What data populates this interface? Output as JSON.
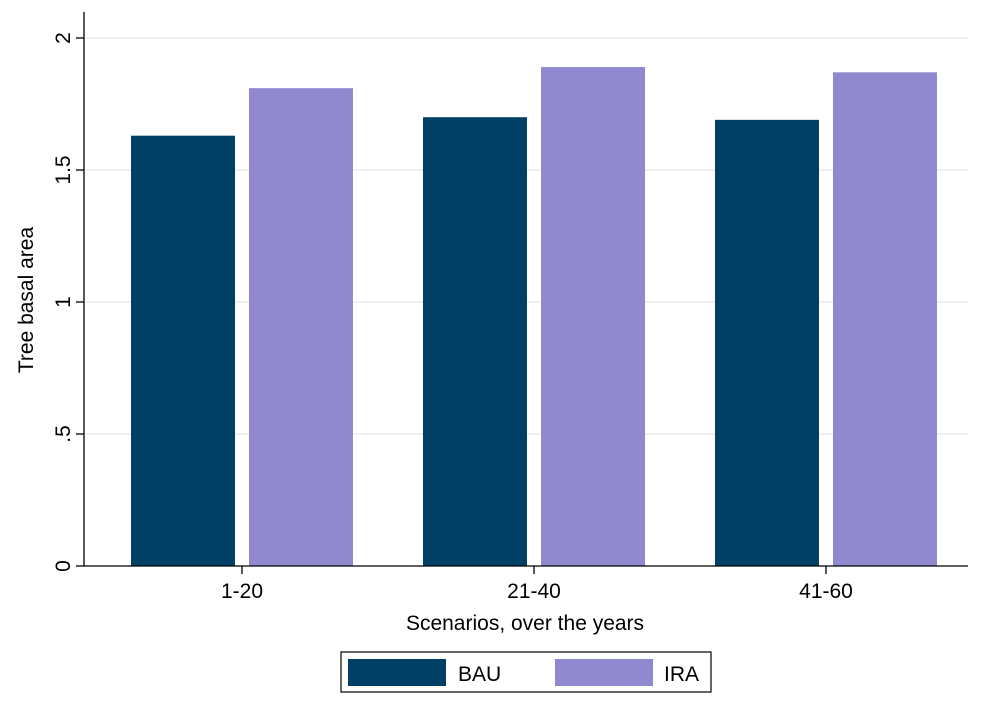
{
  "chart_data": {
    "type": "bar",
    "categories": [
      "1-20",
      "21-40",
      "41-60"
    ],
    "series": [
      {
        "name": "BAU",
        "values": [
          1.63,
          1.7,
          1.69
        ],
        "color": "#003f66"
      },
      {
        "name": "IRA",
        "values": [
          1.81,
          1.89,
          1.87
        ],
        "color": "#9189cf"
      }
    ],
    "title": "",
    "xlabel": "Scenarios, over the years",
    "ylabel": "Tree basal area",
    "ylim": [
      0,
      2
    ],
    "yticks": [
      0,
      0.5,
      1,
      1.5,
      2
    ],
    "ytick_labels": [
      "0",
      ".5",
      "1",
      "1.5",
      "2"
    ],
    "grid": true,
    "grid_color": "#e6e6e6",
    "legend_position": "bottom-center"
  }
}
